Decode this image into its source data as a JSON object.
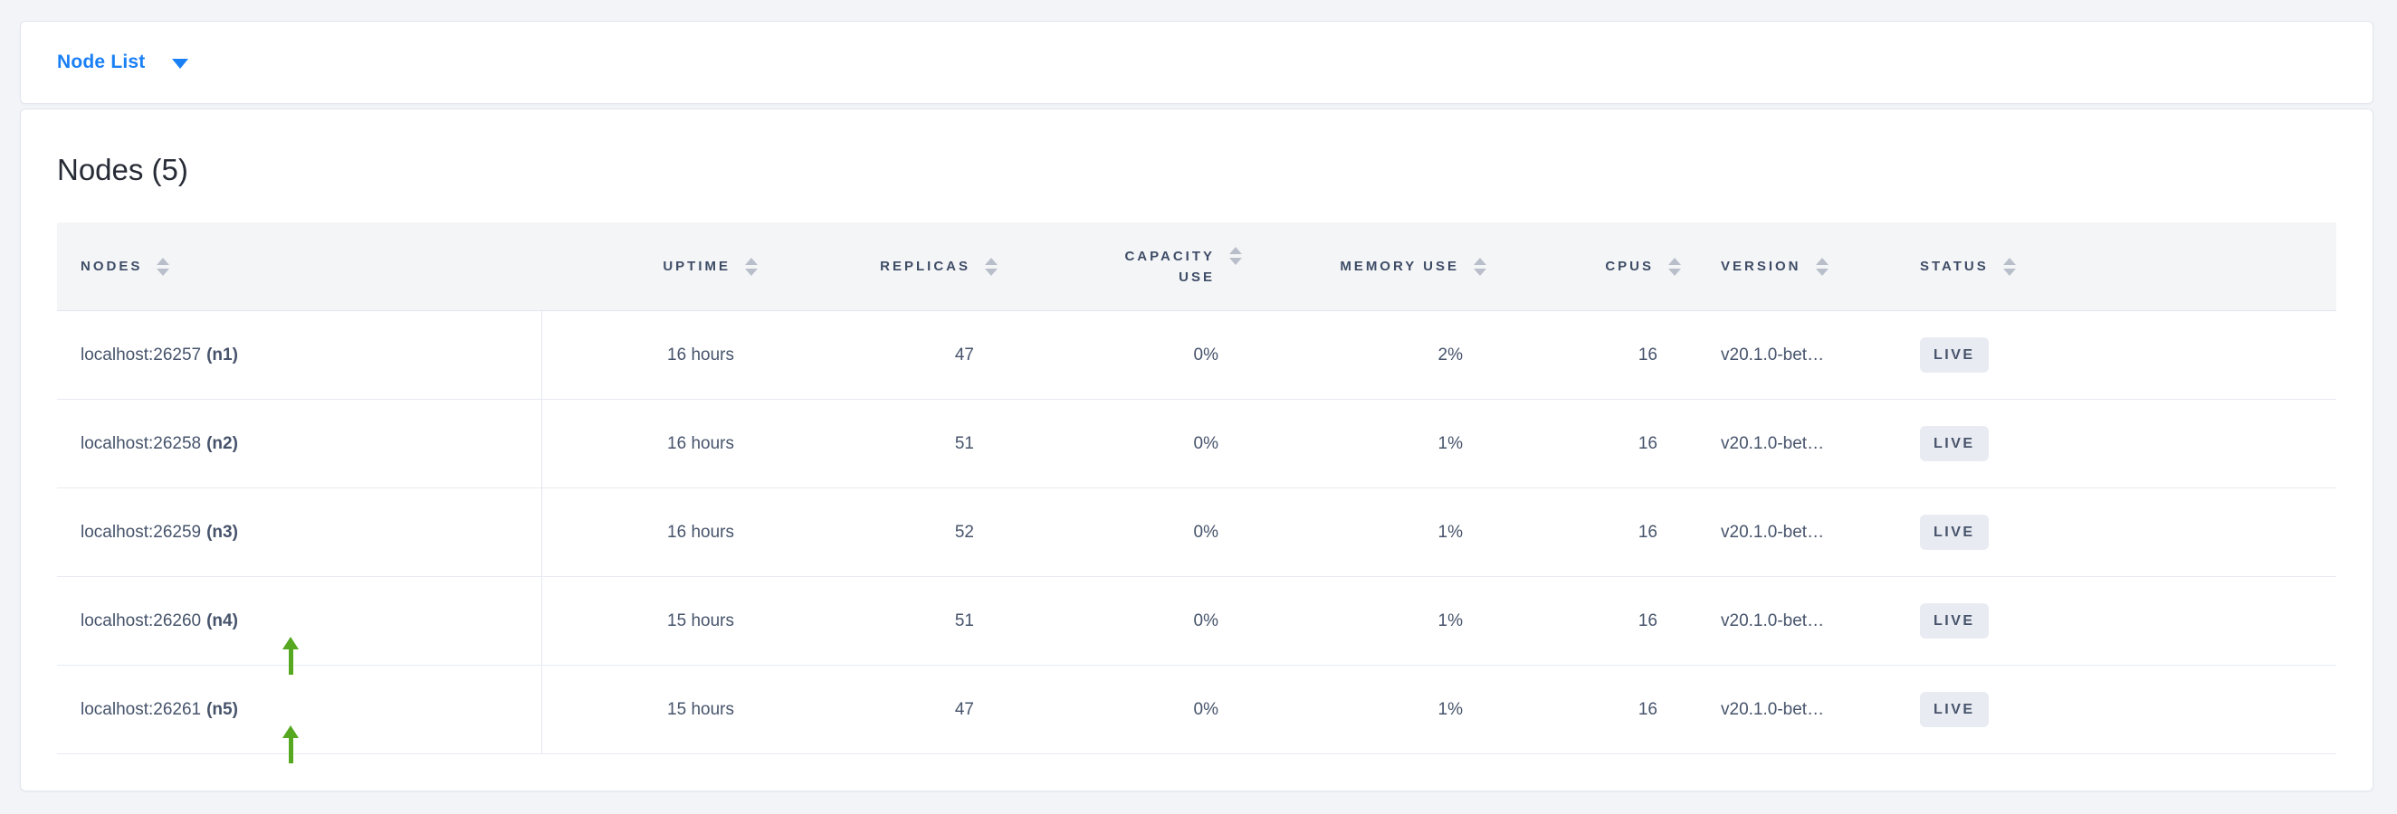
{
  "view_selector": {
    "label": "Node List"
  },
  "main": {
    "heading": "Nodes (5)"
  },
  "table": {
    "columns": [
      {
        "id": "nodes",
        "label": "NODES",
        "align": "left"
      },
      {
        "id": "uptime",
        "label": "UPTIME",
        "align": "right"
      },
      {
        "id": "replicas",
        "label": "REPLICAS",
        "align": "right"
      },
      {
        "id": "capacity_use",
        "label": "CAPACITY USE",
        "align": "right"
      },
      {
        "id": "memory_use",
        "label": "MEMORY USE",
        "align": "right"
      },
      {
        "id": "cpus",
        "label": "CPUS",
        "align": "right"
      },
      {
        "id": "version",
        "label": "VERSION",
        "align": "left"
      },
      {
        "id": "status",
        "label": "STATUS",
        "align": "left"
      }
    ],
    "rows": [
      {
        "address": "localhost:26257",
        "node_id": "(n1)",
        "uptime": "16 hours",
        "replicas": "47",
        "capacity_use": "0%",
        "memory_use": "2%",
        "cpus": "16",
        "version": "v20.1.0-bet…",
        "status": "LIVE",
        "annotation": null
      },
      {
        "address": "localhost:26258",
        "node_id": "(n2)",
        "uptime": "16 hours",
        "replicas": "51",
        "capacity_use": "0%",
        "memory_use": "1%",
        "cpus": "16",
        "version": "v20.1.0-bet…",
        "status": "LIVE",
        "annotation": null
      },
      {
        "address": "localhost:26259",
        "node_id": "(n3)",
        "uptime": "16 hours",
        "replicas": "52",
        "capacity_use": "0%",
        "memory_use": "1%",
        "cpus": "16",
        "version": "v20.1.0-bet…",
        "status": "LIVE",
        "annotation": null
      },
      {
        "address": "localhost:26260",
        "node_id": "(n4)",
        "uptime": "15 hours",
        "replicas": "51",
        "capacity_use": "0%",
        "memory_use": "1%",
        "cpus": "16",
        "version": "v20.1.0-bet…",
        "status": "LIVE",
        "annotation": "green-arrow-up"
      },
      {
        "address": "localhost:26261",
        "node_id": "(n5)",
        "uptime": "15 hours",
        "replicas": "47",
        "capacity_use": "0%",
        "memory_use": "1%",
        "cpus": "16",
        "version": "v20.1.0-bet…",
        "status": "LIVE",
        "annotation": "green-arrow-up"
      }
    ]
  },
  "colors": {
    "accent_blue": "#1a80f5",
    "annotation_green": "#55a820",
    "badge_bg": "#e8ebf2",
    "header_text": "#3e4c66",
    "body_text": "#46536b",
    "page_bg": "#f2f4f8"
  }
}
